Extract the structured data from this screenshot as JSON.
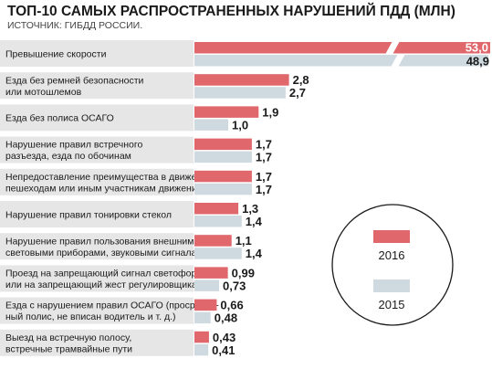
{
  "header": {
    "title": "ТОП-10 САМЫХ РАСПРОСТРАНЕННЫХ НАРУШЕНИЙ ПДД (МЛН)",
    "subtitle": "ИСТОЧНИК: ГИБДД РОССИИ."
  },
  "colors": {
    "series_2016": "#e0676b",
    "series_2015": "#cfd9e0",
    "row_bg": "#e6e6e6",
    "legend_circle": "#ffffff"
  },
  "chart_data": {
    "type": "bar",
    "orientation": "horizontal",
    "title": "ТОП-10 САМЫХ РАСПРОСТРАНЕННЫХ НАРУШЕНИЙ ПДД (МЛН)",
    "subtitle": "ИСТОЧНИК: ГИБДД РОССИИ.",
    "unit": "млн",
    "axis_break": true,
    "grid": false,
    "legend_position": "right",
    "categories": [
      [
        "Превышение скорости"
      ],
      [
        "Езда без ремней безопасности",
        "или мотошлемов"
      ],
      [
        "Езда без полиса ОСАГО"
      ],
      [
        "Нарушение правил встречного",
        "разъезда, езда по обочинам"
      ],
      [
        "Непредоставление преимущества в движении",
        "пешеходам или иным участникам движения"
      ],
      [
        "Нарушение правил тонировки стекол"
      ],
      [
        "Нарушение правил пользования внешними",
        "световыми приборами, звуковыми сигналами"
      ],
      [
        "Проезд на запрещающий сигнал светофора",
        "или на запрещающий жест регулировщика"
      ],
      [
        "Езда с нарушением правил ОСАГО (просрочен-",
        "ный полис, не вписан водитель и т. д.)"
      ],
      [
        "Выезд на встречную полосу,",
        "встречные трамвайные пути"
      ]
    ],
    "series": [
      {
        "name": "2016",
        "values": [
          53.0,
          2.8,
          1.9,
          1.7,
          1.7,
          1.3,
          1.1,
          0.99,
          0.66,
          0.43
        ],
        "labels": [
          "53,0",
          "2,8",
          "1,9",
          "1,7",
          "1,7",
          "1,3",
          "1,1",
          "0,99",
          "0,66",
          "0,43"
        ]
      },
      {
        "name": "2015",
        "values": [
          48.9,
          2.7,
          1.0,
          1.7,
          1.7,
          1.4,
          1.4,
          0.73,
          0.48,
          0.41
        ],
        "labels": [
          "48,9",
          "2,7",
          "1,0",
          "1,7",
          "1,7",
          "1,4",
          "1,4",
          "0,73",
          "0,48",
          "0,41"
        ]
      }
    ]
  }
}
